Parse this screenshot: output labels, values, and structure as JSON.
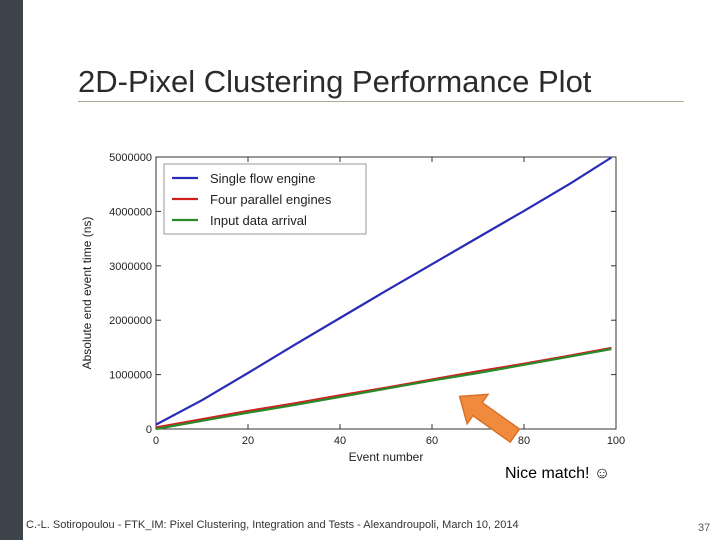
{
  "slide": {
    "title": "2D-Pixel Clustering Performance Plot",
    "annotation": "Nice match! ☺",
    "footer": "C.-L. Sotiropoulou - FTK_IM: Pixel Clustering, Integration and Tests - Alexandroupoli, March 10, 2014",
    "page_number": "37"
  },
  "chart_data": {
    "type": "line",
    "title": "",
    "xlabel": "Event number",
    "ylabel": "Absolute end event time (ns)",
    "xlim": [
      0,
      100
    ],
    "ylim": [
      0,
      5000000
    ],
    "xticks": [
      "0",
      "20",
      "40",
      "60",
      "80",
      "100"
    ],
    "yticks": [
      "0",
      "1000000",
      "2000000",
      "3000000",
      "4000000",
      "5000000"
    ],
    "grid": false,
    "legend_position": "top-left",
    "x": [
      0,
      10,
      20,
      30,
      40,
      50,
      60,
      70,
      80,
      90,
      99
    ],
    "series": [
      {
        "name": "Single flow engine",
        "color": "#2a2ab8",
        "values": [
          80000,
          530000,
          1030000,
          1540000,
          2040000,
          2540000,
          3030000,
          3520000,
          4010000,
          4510000,
          4990000
        ]
      },
      {
        "name": "Four parallel engines",
        "color": "#d02020",
        "values": [
          30000,
          180000,
          330000,
          470000,
          620000,
          760000,
          910000,
          1060000,
          1200000,
          1350000,
          1490000
        ]
      },
      {
        "name": "Input data arrival",
        "color": "#2a8a2a",
        "values": [
          0,
          150000,
          300000,
          440000,
          590000,
          740000,
          890000,
          1030000,
          1180000,
          1330000,
          1470000
        ]
      }
    ],
    "arrow": {
      "color": "#f08a3c",
      "from": [
        78,
        -120000
      ],
      "to": [
        66,
        600000
      ]
    }
  }
}
